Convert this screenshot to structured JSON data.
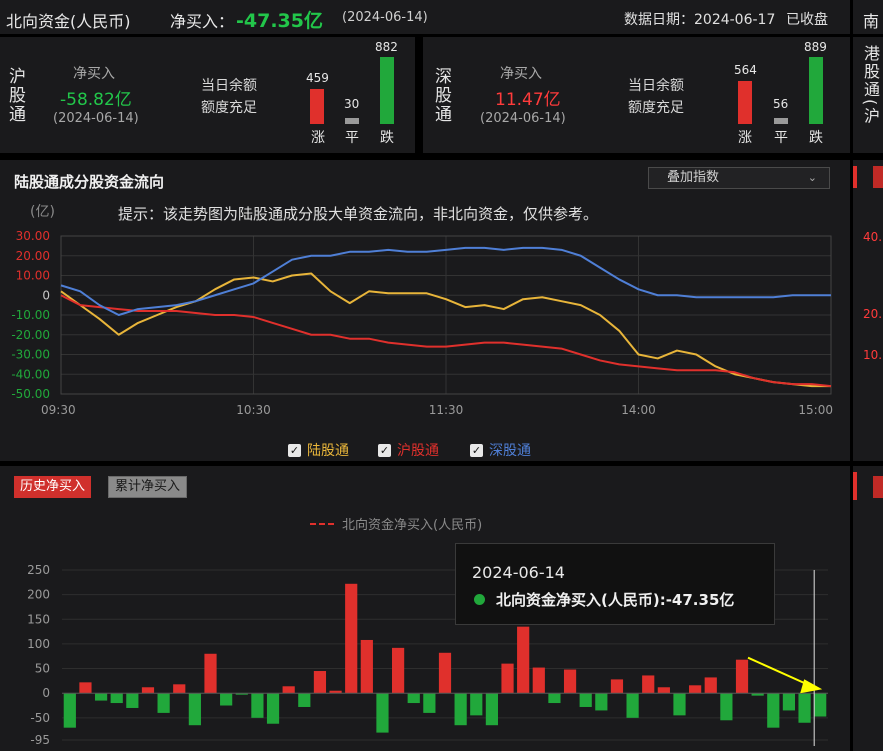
{
  "header": {
    "title": "北向资金(人民币)",
    "net_label": "净买入：",
    "net_value": "-47.35亿",
    "net_date": "(2024-06-14)",
    "data_date_label": "数据日期：2024-06-17",
    "status": "已收盘",
    "right_fragment": "南"
  },
  "sh": {
    "name": "沪股通",
    "net_label": "净买入",
    "net_value": "-58.82亿",
    "date": "(2024-06-14)",
    "quota_label": "当日余额",
    "quota_value": "额度充足",
    "up": {
      "count": "459",
      "label": "涨",
      "value": 459
    },
    "flat": {
      "count": "30",
      "label": "平",
      "value": 30
    },
    "down": {
      "count": "882",
      "label": "跌",
      "value": 882
    }
  },
  "sz": {
    "name": "深股通",
    "net_label": "净买入",
    "net_value": "11.47亿",
    "date": "(2024-06-14)",
    "quota_label": "当日余额",
    "quota_value": "额度充足",
    "up": {
      "count": "564",
      "label": "涨",
      "value": 564
    },
    "flat": {
      "count": "56",
      "label": "平",
      "value": 56
    },
    "down": {
      "count": "889",
      "label": "跌",
      "value": 889
    }
  },
  "right_side": {
    "title_fragment": "港股通(沪",
    "ticks": [
      "40.",
      "20.",
      "10."
    ]
  },
  "flow_panel": {
    "title": "陆股通成分股资金流向",
    "dropdown": "叠加指数",
    "unit": "(亿)",
    "hint": "提示：该走势图为陆股通成分股大单资金流向，非北向资金，仅供参考。",
    "legend": [
      {
        "label": "陆股通",
        "color": "#e8b53a",
        "checked": true
      },
      {
        "label": "沪股通",
        "color": "#e0302c",
        "checked": true
      },
      {
        "label": "深股通",
        "color": "#4f7fd6",
        "checked": true
      }
    ]
  },
  "chart_flow": {
    "type": "line",
    "x_ticks": [
      "09:30",
      "10:30",
      "11:30",
      "14:00",
      "15:00"
    ],
    "y_ticks": [
      "30.00",
      "20.00",
      "10.00",
      "0",
      "-10.00",
      "-20.00",
      "-30.00",
      "-40.00",
      "-50.00"
    ],
    "ylim": [
      -50,
      30
    ]
  },
  "history_panel": {
    "tab_active": "历史净买入",
    "tab_inactive": "累计净买入",
    "legend_label": "北向资金净买入(人民币)",
    "y_ticks": [
      "250",
      "200",
      "150",
      "100",
      "50",
      "0",
      "-50",
      "-95"
    ],
    "tooltip_date": "2024-06-14",
    "tooltip_label": "北向资金净买入(人民币):-47.35亿"
  },
  "chart_data": [
    {
      "type": "line",
      "title": "陆股通成分股资金流向",
      "ylabel": "(亿)",
      "x_ticks": [
        "09:30",
        "10:30",
        "11:30",
        "14:00",
        "15:00"
      ],
      "ylim": [
        -50,
        30
      ],
      "grid": true,
      "legend": "bottom",
      "x": [
        0,
        3,
        6,
        9,
        12,
        15,
        18,
        21,
        24,
        27,
        30,
        33,
        36,
        39,
        42,
        45,
        48,
        51,
        54,
        57,
        60,
        63,
        66,
        69,
        72,
        75,
        78,
        81,
        84,
        87,
        90,
        93,
        96,
        99,
        102,
        105,
        108,
        111,
        114,
        117,
        120
      ],
      "series": [
        {
          "name": "陆股通",
          "color": "#e8b53a",
          "values": [
            2,
            -5,
            -12,
            -20,
            -14,
            -10,
            -6,
            -3,
            3,
            8,
            9,
            7,
            10,
            11,
            2,
            -4,
            2,
            1,
            1,
            1,
            -2,
            -6,
            -5,
            -7,
            -2,
            -1,
            -3,
            -5,
            -10,
            -18,
            -30,
            -32,
            -28,
            -30,
            -36,
            -40,
            -42,
            -44,
            -45,
            -46,
            -46
          ]
        },
        {
          "name": "沪股通",
          "color": "#e0302c",
          "values": [
            0,
            -5,
            -6,
            -7,
            -8,
            -8,
            -8,
            -9,
            -10,
            -10,
            -11,
            -14,
            -17,
            -20,
            -20,
            -22,
            -22,
            -24,
            -25,
            -26,
            -26,
            -25,
            -24,
            -24,
            -25,
            -26,
            -27,
            -30,
            -33,
            -35,
            -36,
            -37,
            -38,
            -38,
            -38,
            -39,
            -42,
            -44,
            -45,
            -45,
            -46
          ]
        },
        {
          "name": "深股通",
          "color": "#4f7fd6",
          "values": [
            5,
            2,
            -5,
            -10,
            -7,
            -6,
            -5,
            -3,
            0,
            3,
            6,
            12,
            18,
            20,
            20,
            22,
            22,
            23,
            22,
            22,
            23,
            24,
            24,
            23,
            24,
            24,
            23,
            20,
            14,
            8,
            3,
            0,
            0,
            -1,
            -1,
            -1,
            -1,
            -1,
            0,
            0,
            0
          ]
        }
      ]
    },
    {
      "type": "bar",
      "title": "北向资金净买入(人民币)",
      "ylim": [
        -95,
        250
      ],
      "y_ticks": [
        250,
        200,
        150,
        100,
        50,
        0,
        -50,
        -95
      ],
      "grid": true,
      "series": [
        {
          "name": "北向资金净买入(人民币)",
          "values": [
            -70,
            22,
            -15,
            -20,
            -30,
            12,
            -40,
            18,
            -65,
            80,
            -25,
            -3,
            -50,
            -62,
            14,
            -28,
            45,
            5,
            222,
            108,
            -80,
            92,
            -20,
            -40,
            82,
            -65,
            -45,
            -65,
            60,
            135,
            52,
            -20,
            48,
            -28,
            -35,
            28,
            -50,
            36,
            12,
            -45,
            16,
            32,
            -55,
            68,
            -5,
            -70,
            -35,
            -60,
            -47.35
          ]
        }
      ]
    }
  ],
  "colors": {
    "accent_red": "#ff3b3b",
    "accent_green": "#22c64a",
    "bar_red": "#e0302c",
    "bar_green": "#21a83b",
    "grid": "#3a3a3a",
    "annotation_arrow": "#ffff00"
  }
}
